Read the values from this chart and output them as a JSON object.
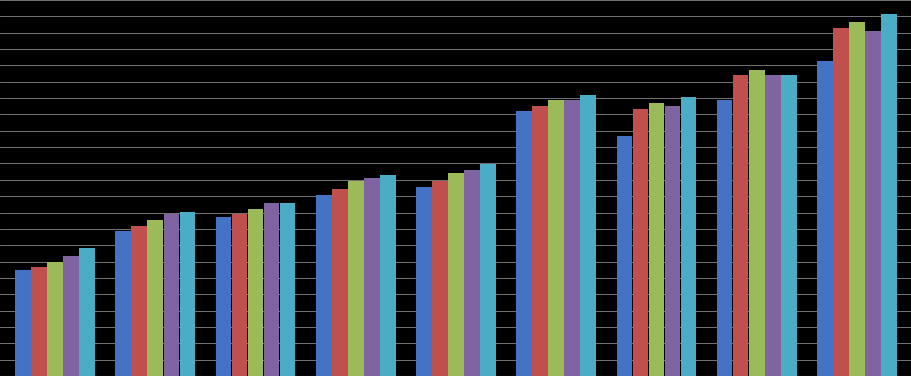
{
  "groups": 9,
  "series_count": 5,
  "colors": [
    "#4472C4",
    "#C0504D",
    "#9BBB59",
    "#8064A2",
    "#4BACC6"
  ],
  "bar_width": 0.16,
  "background_color": "#000000",
  "plot_bg": "#000000",
  "grid_color": "#888888",
  "values": [
    [
      38,
      39,
      41,
      43,
      46
    ],
    [
      52,
      54,
      56,
      58,
      59
    ],
    [
      57,
      58,
      60,
      62,
      62
    ],
    [
      65,
      67,
      70,
      71,
      72
    ],
    [
      68,
      70,
      73,
      74,
      76
    ],
    [
      95,
      97,
      99,
      99,
      101
    ],
    [
      86,
      96,
      98,
      97,
      100
    ],
    [
      99,
      108,
      110,
      108,
      108
    ],
    [
      113,
      125,
      127,
      124,
      130
    ]
  ],
  "ylim": [
    0,
    135
  ],
  "n_gridlines": 24
}
